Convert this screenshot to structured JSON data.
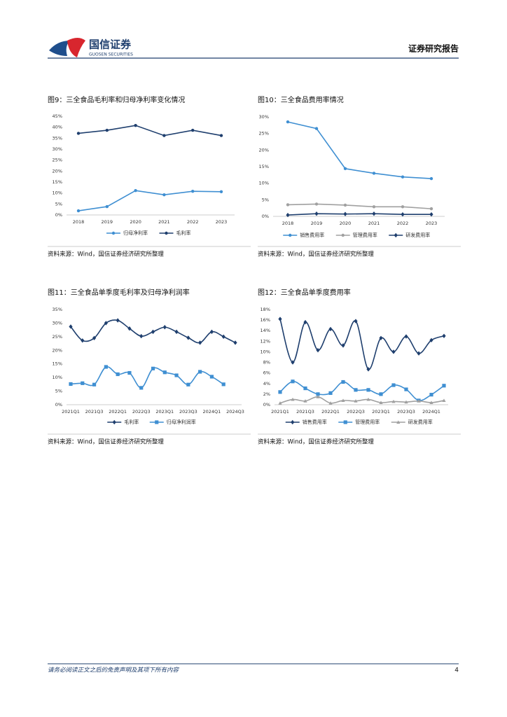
{
  "header": {
    "brand": "国信证券",
    "brand_en": "GUOSEN SECURITIES",
    "report_type": "证券研究报告"
  },
  "footer": {
    "disclaimer": "请务必阅读正文之后的免责声明及其项下所有内容",
    "page": 4
  },
  "chart_data": [
    {
      "type": "line",
      "title": "图9：三全食品毛利率和归母净利率变化情况",
      "source": "资料来源：Wind，国信证券经济研究所整理",
      "categories": [
        "2018",
        "2019",
        "2020",
        "2021",
        "2022",
        "2023"
      ],
      "series": [
        {
          "name": "归母净利率",
          "color": "#3f8fd2",
          "marker": "circle",
          "values": [
            1.9,
            3.8,
            11.1,
            9.2,
            10.8,
            10.6
          ]
        },
        {
          "name": "毛利率",
          "color": "#1f3f6e",
          "marker": "circle",
          "values": [
            37.2,
            38.6,
            40.8,
            36.2,
            38.6,
            36.2
          ]
        }
      ],
      "ylim": [
        0,
        45
      ],
      "yticks": [
        {
          "value": 0,
          "label": "0%"
        },
        {
          "value": 5,
          "label": "5%"
        },
        {
          "value": 10,
          "label": "10%"
        },
        {
          "value": 15,
          "label": "15%"
        },
        {
          "value": 20,
          "label": "20%"
        },
        {
          "value": 25,
          "label": "25%"
        },
        {
          "value": 30,
          "label": "30%"
        },
        {
          "value": 35,
          "label": "35%"
        },
        {
          "value": 40,
          "label": "40%"
        },
        {
          "value": 45,
          "label": "45%"
        }
      ],
      "smooth": false
    },
    {
      "type": "line",
      "title": "图10：三全食品费用率情况",
      "source": "资料来源：Wind，国信证券经济研究所整理",
      "categories": [
        "2018",
        "2019",
        "2020",
        "2021",
        "2022",
        "2023"
      ],
      "series": [
        {
          "name": "销售费用率",
          "color": "#3f8fd2",
          "marker": "circle",
          "values": [
            28.5,
            26.5,
            14.4,
            13.0,
            11.9,
            11.4
          ]
        },
        {
          "name": "管理费用率",
          "color": "#a0a0a0",
          "marker": "circle",
          "values": [
            3.5,
            3.7,
            3.4,
            2.9,
            2.9,
            2.3
          ]
        },
        {
          "name": "研发费用率",
          "color": "#1f3f6e",
          "marker": "diamond",
          "values": [
            0.4,
            0.8,
            0.7,
            0.8,
            0.6,
            0.6
          ]
        }
      ],
      "ylim": [
        0,
        30
      ],
      "yticks": [
        {
          "value": 0,
          "label": "0%"
        },
        {
          "value": 5,
          "label": "5%"
        },
        {
          "value": 10,
          "label": "10%"
        },
        {
          "value": 15,
          "label": "15%"
        },
        {
          "value": 20,
          "label": "20%"
        },
        {
          "value": 25,
          "label": "25%"
        },
        {
          "value": 30,
          "label": "30%"
        }
      ],
      "smooth": false
    },
    {
      "type": "line",
      "title": "图11：三全食品单季度毛利率及归母净利润率",
      "source": "资料来源：Wind，国信证券经济研究所整理",
      "categories": [
        "2021Q1",
        null,
        "2021Q3",
        null,
        "2022Q1",
        null,
        "2022Q3",
        null,
        "2023Q1",
        null,
        "2023Q3",
        null,
        "2024Q1",
        null,
        "2024Q3"
      ],
      "series": [
        {
          "name": "毛利率",
          "color": "#1f3f6e",
          "marker": "diamond",
          "values": [
            28.7,
            23.6,
            24.5,
            30.0,
            31.0,
            28.0,
            25.2,
            26.8,
            28.5,
            26.8,
            24.6,
            22.8,
            26.8,
            25.0,
            22.8
          ]
        },
        {
          "name": "归母净利润率",
          "color": "#3f8fd2",
          "marker": "square",
          "values": [
            7.6,
            7.9,
            7.4,
            13.9,
            11.2,
            11.7,
            6.2,
            13.3,
            11.9,
            10.8,
            7.4,
            12.1,
            10.3,
            7.5,
            null
          ]
        }
      ],
      "ylim": [
        0,
        35
      ],
      "yticks": [
        {
          "value": 0,
          "label": "0%"
        },
        {
          "value": 5,
          "label": "5%"
        },
        {
          "value": 10,
          "label": "10%"
        },
        {
          "value": 15,
          "label": "15%"
        },
        {
          "value": 20,
          "label": "20%"
        },
        {
          "value": 25,
          "label": "25%"
        },
        {
          "value": 30,
          "label": "30%"
        },
        {
          "value": 35,
          "label": "35%"
        }
      ],
      "smooth": true
    },
    {
      "type": "line",
      "title": "图12：三全食品单季度费用率",
      "source": "资料来源：Wind，国信证券经济研究所整理",
      "categories": [
        "2021Q1",
        null,
        "2021Q3",
        null,
        "2022Q1",
        null,
        "2022Q3",
        null,
        "2023Q1",
        null,
        "2023Q3",
        null,
        "2024Q1",
        null
      ],
      "series": [
        {
          "name": "销售费用率",
          "color": "#1f3f6e",
          "marker": "diamond",
          "values": [
            16.2,
            8.0,
            15.6,
            10.3,
            14.3,
            11.2,
            15.8,
            6.7,
            12.6,
            10.0,
            12.9,
            9.7,
            12.2,
            13.0
          ]
        },
        {
          "name": "管理费用率",
          "color": "#3f8fd2",
          "marker": "square",
          "values": [
            2.4,
            4.4,
            3.1,
            2.0,
            2.2,
            4.3,
            2.8,
            2.8,
            2.0,
            3.7,
            2.9,
            0.8,
            1.9,
            3.6
          ]
        },
        {
          "name": "研发费用率",
          "color": "#a0a0a0",
          "marker": "triangle",
          "values": [
            0.3,
            1.0,
            0.7,
            1.5,
            0.3,
            0.8,
            0.7,
            1.0,
            0.4,
            0.6,
            0.5,
            0.7,
            0.4,
            0.8
          ]
        }
      ],
      "ylim": [
        0,
        18
      ],
      "yticks": [
        {
          "value": 0,
          "label": "0%"
        },
        {
          "value": 2,
          "label": "2%"
        },
        {
          "value": 4,
          "label": "4%"
        },
        {
          "value": 6,
          "label": "6%"
        },
        {
          "value": 8,
          "label": "8%"
        },
        {
          "value": 10,
          "label": "10%"
        },
        {
          "value": 12,
          "label": "12%"
        },
        {
          "value": 14,
          "label": "14%"
        },
        {
          "value": 16,
          "label": "16%"
        },
        {
          "value": 18,
          "label": "18%"
        }
      ],
      "smooth": true
    }
  ]
}
